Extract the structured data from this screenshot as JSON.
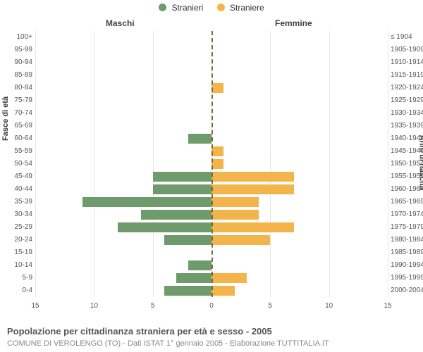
{
  "chart": {
    "type": "population-pyramid",
    "legend": {
      "male": {
        "label": "Stranieri",
        "color": "#6f9a6c"
      },
      "female": {
        "label": "Straniere",
        "color": "#f3b54a"
      }
    },
    "header_male": "Maschi",
    "header_female": "Femmine",
    "y_left_title": "Fasce di età",
    "y_right_title": "Anni di nascita",
    "xlim": 15,
    "xticks": [
      15,
      10,
      5,
      0,
      5,
      10,
      15
    ],
    "center_line_color": "#7a6a2f",
    "grid_color": "#e6e6e6",
    "background_color": "#ffffff",
    "male_bar_color": "#6f9a6c",
    "female_bar_color": "#f3b54a",
    "label_fontsize": 10,
    "rows": [
      {
        "age": "100+",
        "birth": "≤ 1904",
        "m": 0,
        "f": 0
      },
      {
        "age": "95-99",
        "birth": "1905-1909",
        "m": 0,
        "f": 0
      },
      {
        "age": "90-94",
        "birth": "1910-1914",
        "m": 0,
        "f": 0
      },
      {
        "age": "85-89",
        "birth": "1915-1919",
        "m": 0,
        "f": 0
      },
      {
        "age": "80-84",
        "birth": "1920-1924",
        "m": 0,
        "f": 1
      },
      {
        "age": "75-79",
        "birth": "1925-1929",
        "m": 0,
        "f": 0
      },
      {
        "age": "70-74",
        "birth": "1930-1934",
        "m": 0,
        "f": 0
      },
      {
        "age": "65-69",
        "birth": "1935-1939",
        "m": 0,
        "f": 0
      },
      {
        "age": "60-64",
        "birth": "1940-1944",
        "m": 2,
        "f": 0
      },
      {
        "age": "55-59",
        "birth": "1945-1949",
        "m": 0,
        "f": 1
      },
      {
        "age": "50-54",
        "birth": "1950-1954",
        "m": 0,
        "f": 1
      },
      {
        "age": "45-49",
        "birth": "1955-1959",
        "m": 5,
        "f": 7
      },
      {
        "age": "40-44",
        "birth": "1960-1964",
        "m": 5,
        "f": 7
      },
      {
        "age": "35-39",
        "birth": "1965-1969",
        "m": 11,
        "f": 4
      },
      {
        "age": "30-34",
        "birth": "1970-1974",
        "m": 6,
        "f": 4
      },
      {
        "age": "25-29",
        "birth": "1975-1979",
        "m": 8,
        "f": 7
      },
      {
        "age": "20-24",
        "birth": "1980-1984",
        "m": 4,
        "f": 5
      },
      {
        "age": "15-19",
        "birth": "1985-1989",
        "m": 0,
        "f": 0
      },
      {
        "age": "10-14",
        "birth": "1990-1994",
        "m": 2,
        "f": 0
      },
      {
        "age": "5-9",
        "birth": "1995-1999",
        "m": 3,
        "f": 3
      },
      {
        "age": "0-4",
        "birth": "2000-2004",
        "m": 4,
        "f": 2
      }
    ],
    "title": "Popolazione per cittadinanza straniera per età e sesso - 2005",
    "subtitle": "COMUNE DI VEROLENGO (TO) - Dati ISTAT 1° gennaio 2005 - Elaborazione TUTTITALIA.IT"
  }
}
